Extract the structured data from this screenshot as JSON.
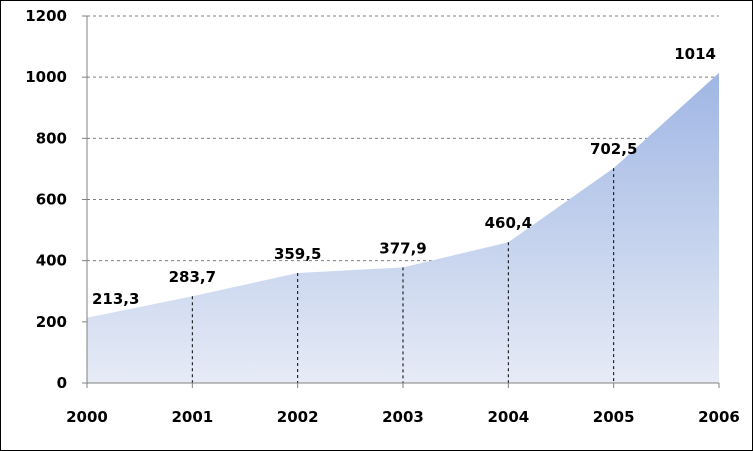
{
  "chart_data": {
    "type": "area",
    "categories": [
      "2000",
      "2001",
      "2002",
      "2003",
      "2004",
      "2005",
      "2006"
    ],
    "values": [
      213.3,
      283.7,
      359.5,
      377.9,
      460.4,
      702.5,
      1014
    ],
    "data_labels": [
      "213,3",
      "283,7",
      "359,5",
      "377,9",
      "460,4",
      "702,5",
      "1014"
    ],
    "ylim": [
      0,
      1200
    ],
    "yticks": [
      0,
      200,
      400,
      600,
      800,
      1000,
      1200
    ],
    "ytick_labels": [
      "0",
      "200",
      "400",
      "600",
      "800",
      "1000",
      "1200"
    ],
    "grid": true,
    "fill_color_top": "#9fb6e4",
    "fill_color_bottom": "#e6ebf6",
    "grid_color": "#808080",
    "title": "",
    "xlabel": "",
    "ylabel": ""
  }
}
